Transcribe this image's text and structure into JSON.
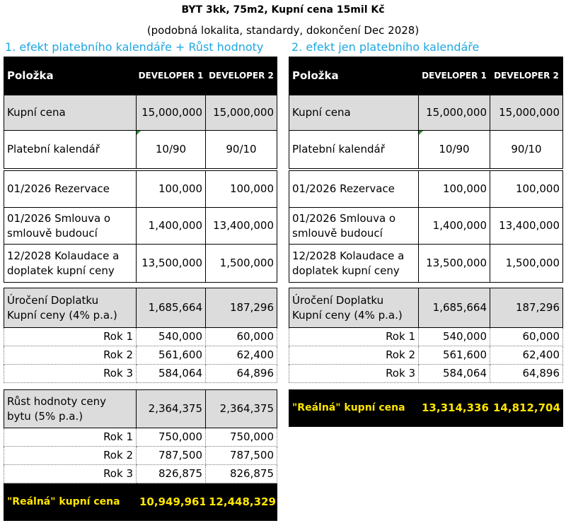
{
  "header": {
    "title": "BYT 3kk, 75m2, Kupní cena 15mil Kč",
    "subtitle": "(podobná lokalita, standardy, dokončení Dec 2028)"
  },
  "panel_a": {
    "heading": "1. efekt platebního kalendáře + Růst hodnoty",
    "col_item": "Položka",
    "col_dev1": "DEVELOPER 1",
    "col_dev2": "DEVELOPER 2",
    "price": {
      "label": "Kupní cena",
      "dev1": "15,000,000",
      "dev2": "15,000,000"
    },
    "calendar": {
      "label": "Platební kalendář",
      "dev1": "10/90",
      "dev2": "90/10"
    },
    "reservation": {
      "label": "01/2026 Rezervace",
      "dev1": "100,000",
      "dev2": "100,000"
    },
    "contract": {
      "label_line1": "01/2026 Smlouva o",
      "label_line2": "smlouvě budoucí",
      "dev1": "1,400,000",
      "dev2": "13,400,000"
    },
    "approval": {
      "label_line1": "12/2028 Kolaudace a",
      "label_line2": "doplatek kupní ceny",
      "dev1": "13,500,000",
      "dev2": "1,500,000"
    },
    "interest": {
      "label_line1": "Úročení Doplatku",
      "label_line2": "Kupní ceny (4% p.a.)",
      "dev1": "1,685,664",
      "dev2": "187,296",
      "years": [
        {
          "label": "Rok 1",
          "dev1": "540,000",
          "dev2": "60,000"
        },
        {
          "label": "Rok 2",
          "dev1": "561,600",
          "dev2": "62,400"
        },
        {
          "label": "Rok 3",
          "dev1": "584,064",
          "dev2": "64,896"
        }
      ]
    },
    "growth": {
      "label_line1": "Růst hodnoty ceny",
      "label_line2": "bytu (5% p.a.)",
      "dev1": "2,364,375",
      "dev2": "2,364,375",
      "years": [
        {
          "label": "Rok 1",
          "dev1": "750,000",
          "dev2": "750,000"
        },
        {
          "label": "Rok 2",
          "dev1": "787,500",
          "dev2": "787,500"
        },
        {
          "label": "Rok 3",
          "dev1": "826,875",
          "dev2": "826,875"
        }
      ]
    },
    "final": {
      "label": "\"Reálná\" kupní cena",
      "dev1": "10,949,961",
      "dev2": "12,448,329"
    }
  },
  "panel_b": {
    "heading": "2. efekt jen platebního kalendáře",
    "col_item": "Položka",
    "col_dev1": "DEVELOPER 1",
    "col_dev2": "DEVELOPER 2",
    "price": {
      "label": "Kupní cena",
      "dev1": "15,000,000",
      "dev2": "15,000,000"
    },
    "calendar": {
      "label": "Platební kalendář",
      "dev1": "10/90",
      "dev2": "90/10"
    },
    "reservation": {
      "label": "01/2026 Rezervace",
      "dev1": "100,000",
      "dev2": "100,000"
    },
    "contract": {
      "label_line1": "01/2026 Smlouva o",
      "label_line2": "smlouvě budoucí",
      "dev1": "1,400,000",
      "dev2": "13,400,000"
    },
    "approval": {
      "label_line1": "12/2028 Kolaudace a",
      "label_line2": "doplatek kupní ceny",
      "dev1": "13,500,000",
      "dev2": "1,500,000"
    },
    "interest": {
      "label_line1": "Úročení Doplatku",
      "label_line2": "Kupní ceny (4% p.a.)",
      "dev1": "1,685,664",
      "dev2": "187,296",
      "years": [
        {
          "label": "Rok 1",
          "dev1": "540,000",
          "dev2": "60,000"
        },
        {
          "label": "Rok 2",
          "dev1": "561,600",
          "dev2": "62,400"
        },
        {
          "label": "Rok 3",
          "dev1": "584,064",
          "dev2": "64,896"
        }
      ]
    },
    "final": {
      "label": "\"Reálná\" kupní cena",
      "dev1": "13,314,336",
      "dev2": "14,812,704"
    }
  }
}
